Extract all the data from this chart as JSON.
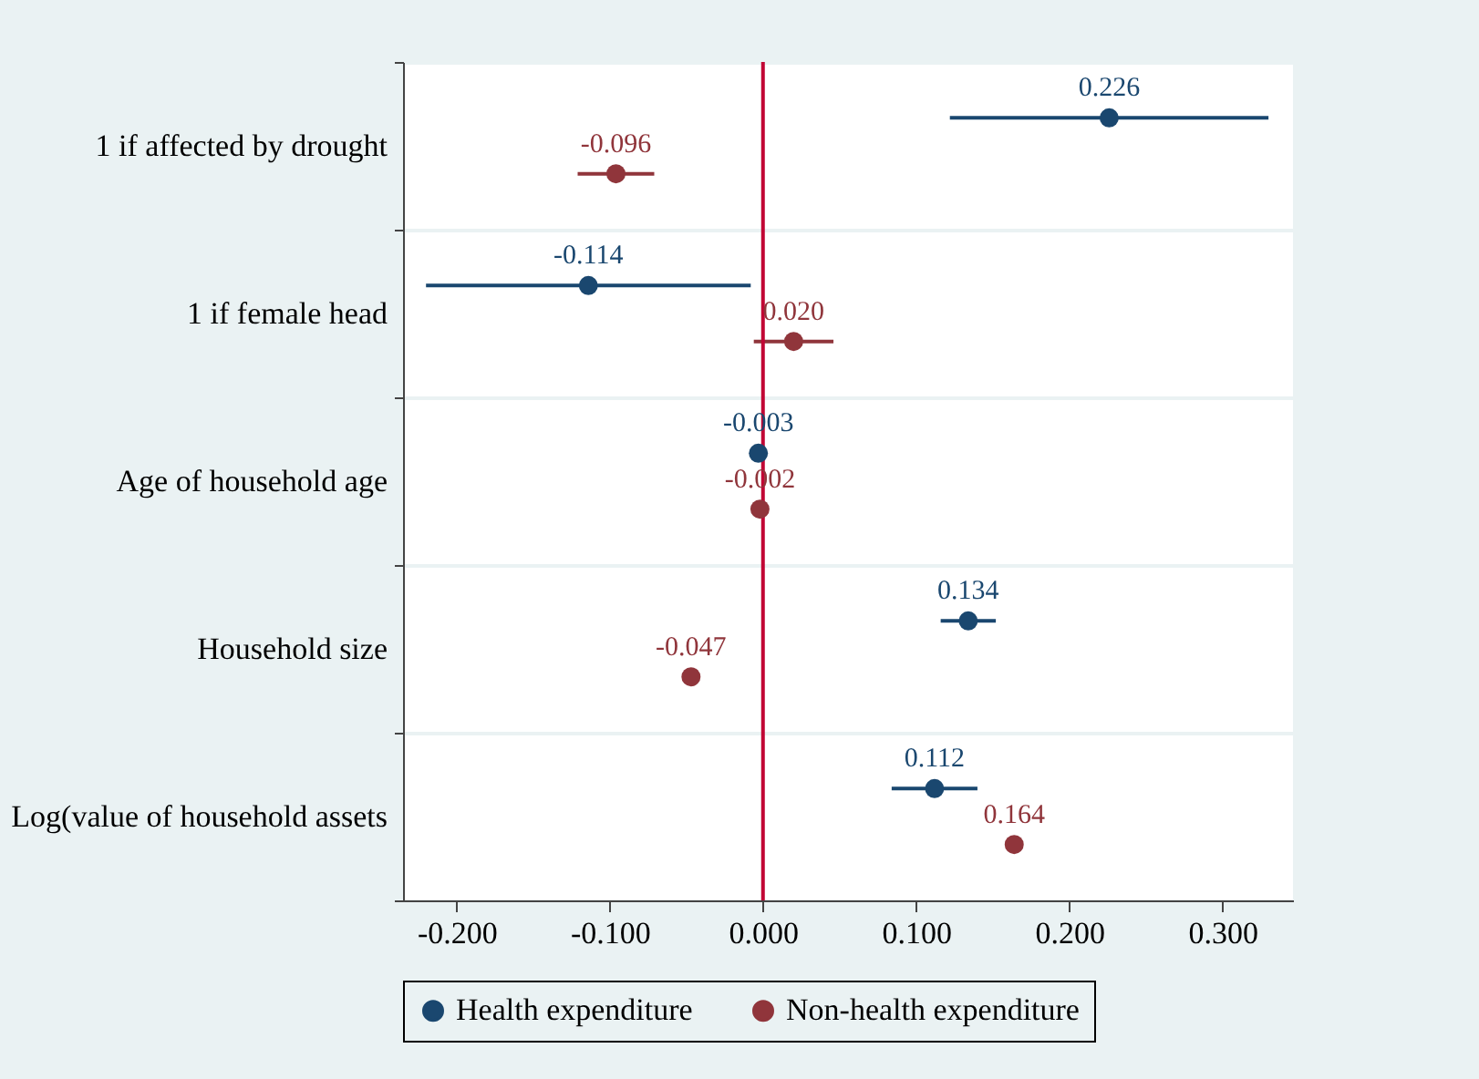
{
  "chart_data": {
    "type": "scatter",
    "orientation": "horizontal",
    "categories": [
      "1 if affected by drought",
      "1 if female head",
      "Age of household age",
      "Household size",
      "Log(value of household assets"
    ],
    "series": [
      {
        "name": "Health expenditure",
        "color": "#1a476f",
        "values": [
          0.226,
          -0.114,
          -0.003,
          0.134,
          0.112
        ],
        "errors": [
          [
            0.122,
            0.33
          ],
          [
            -0.22,
            -0.008
          ],
          null,
          [
            0.116,
            0.152
          ],
          [
            0.084,
            0.14
          ]
        ],
        "value_labels": [
          "0.226",
          "-0.114",
          "-0.003",
          "0.134",
          "0.112"
        ]
      },
      {
        "name": "Non-health expenditure",
        "color": "#90353b",
        "values": [
          -0.096,
          0.02,
          -0.002,
          -0.047,
          0.164
        ],
        "errors": [
          [
            -0.121,
            -0.071
          ],
          [
            -0.006,
            0.046
          ],
          null,
          null,
          null
        ],
        "value_labels": [
          "-0.096",
          "0.020",
          "-0.002",
          "-0.047",
          "0.164"
        ]
      }
    ],
    "xlim": [
      -0.235,
      0.346
    ],
    "xticks": [
      {
        "value": -0.2,
        "label": "-0.200"
      },
      {
        "value": -0.1,
        "label": "-0.100"
      },
      {
        "value": 0,
        "label": "0.000"
      },
      {
        "value": 0.1,
        "label": "0.100"
      },
      {
        "value": 0.2,
        "label": "0.200"
      },
      {
        "value": 0.3,
        "label": "0.300"
      }
    ],
    "ref_lines": [
      {
        "axis": "x",
        "value": 0,
        "color": "#c10534"
      }
    ],
    "grid": "y",
    "legend": "bottom",
    "marker": "circle"
  }
}
